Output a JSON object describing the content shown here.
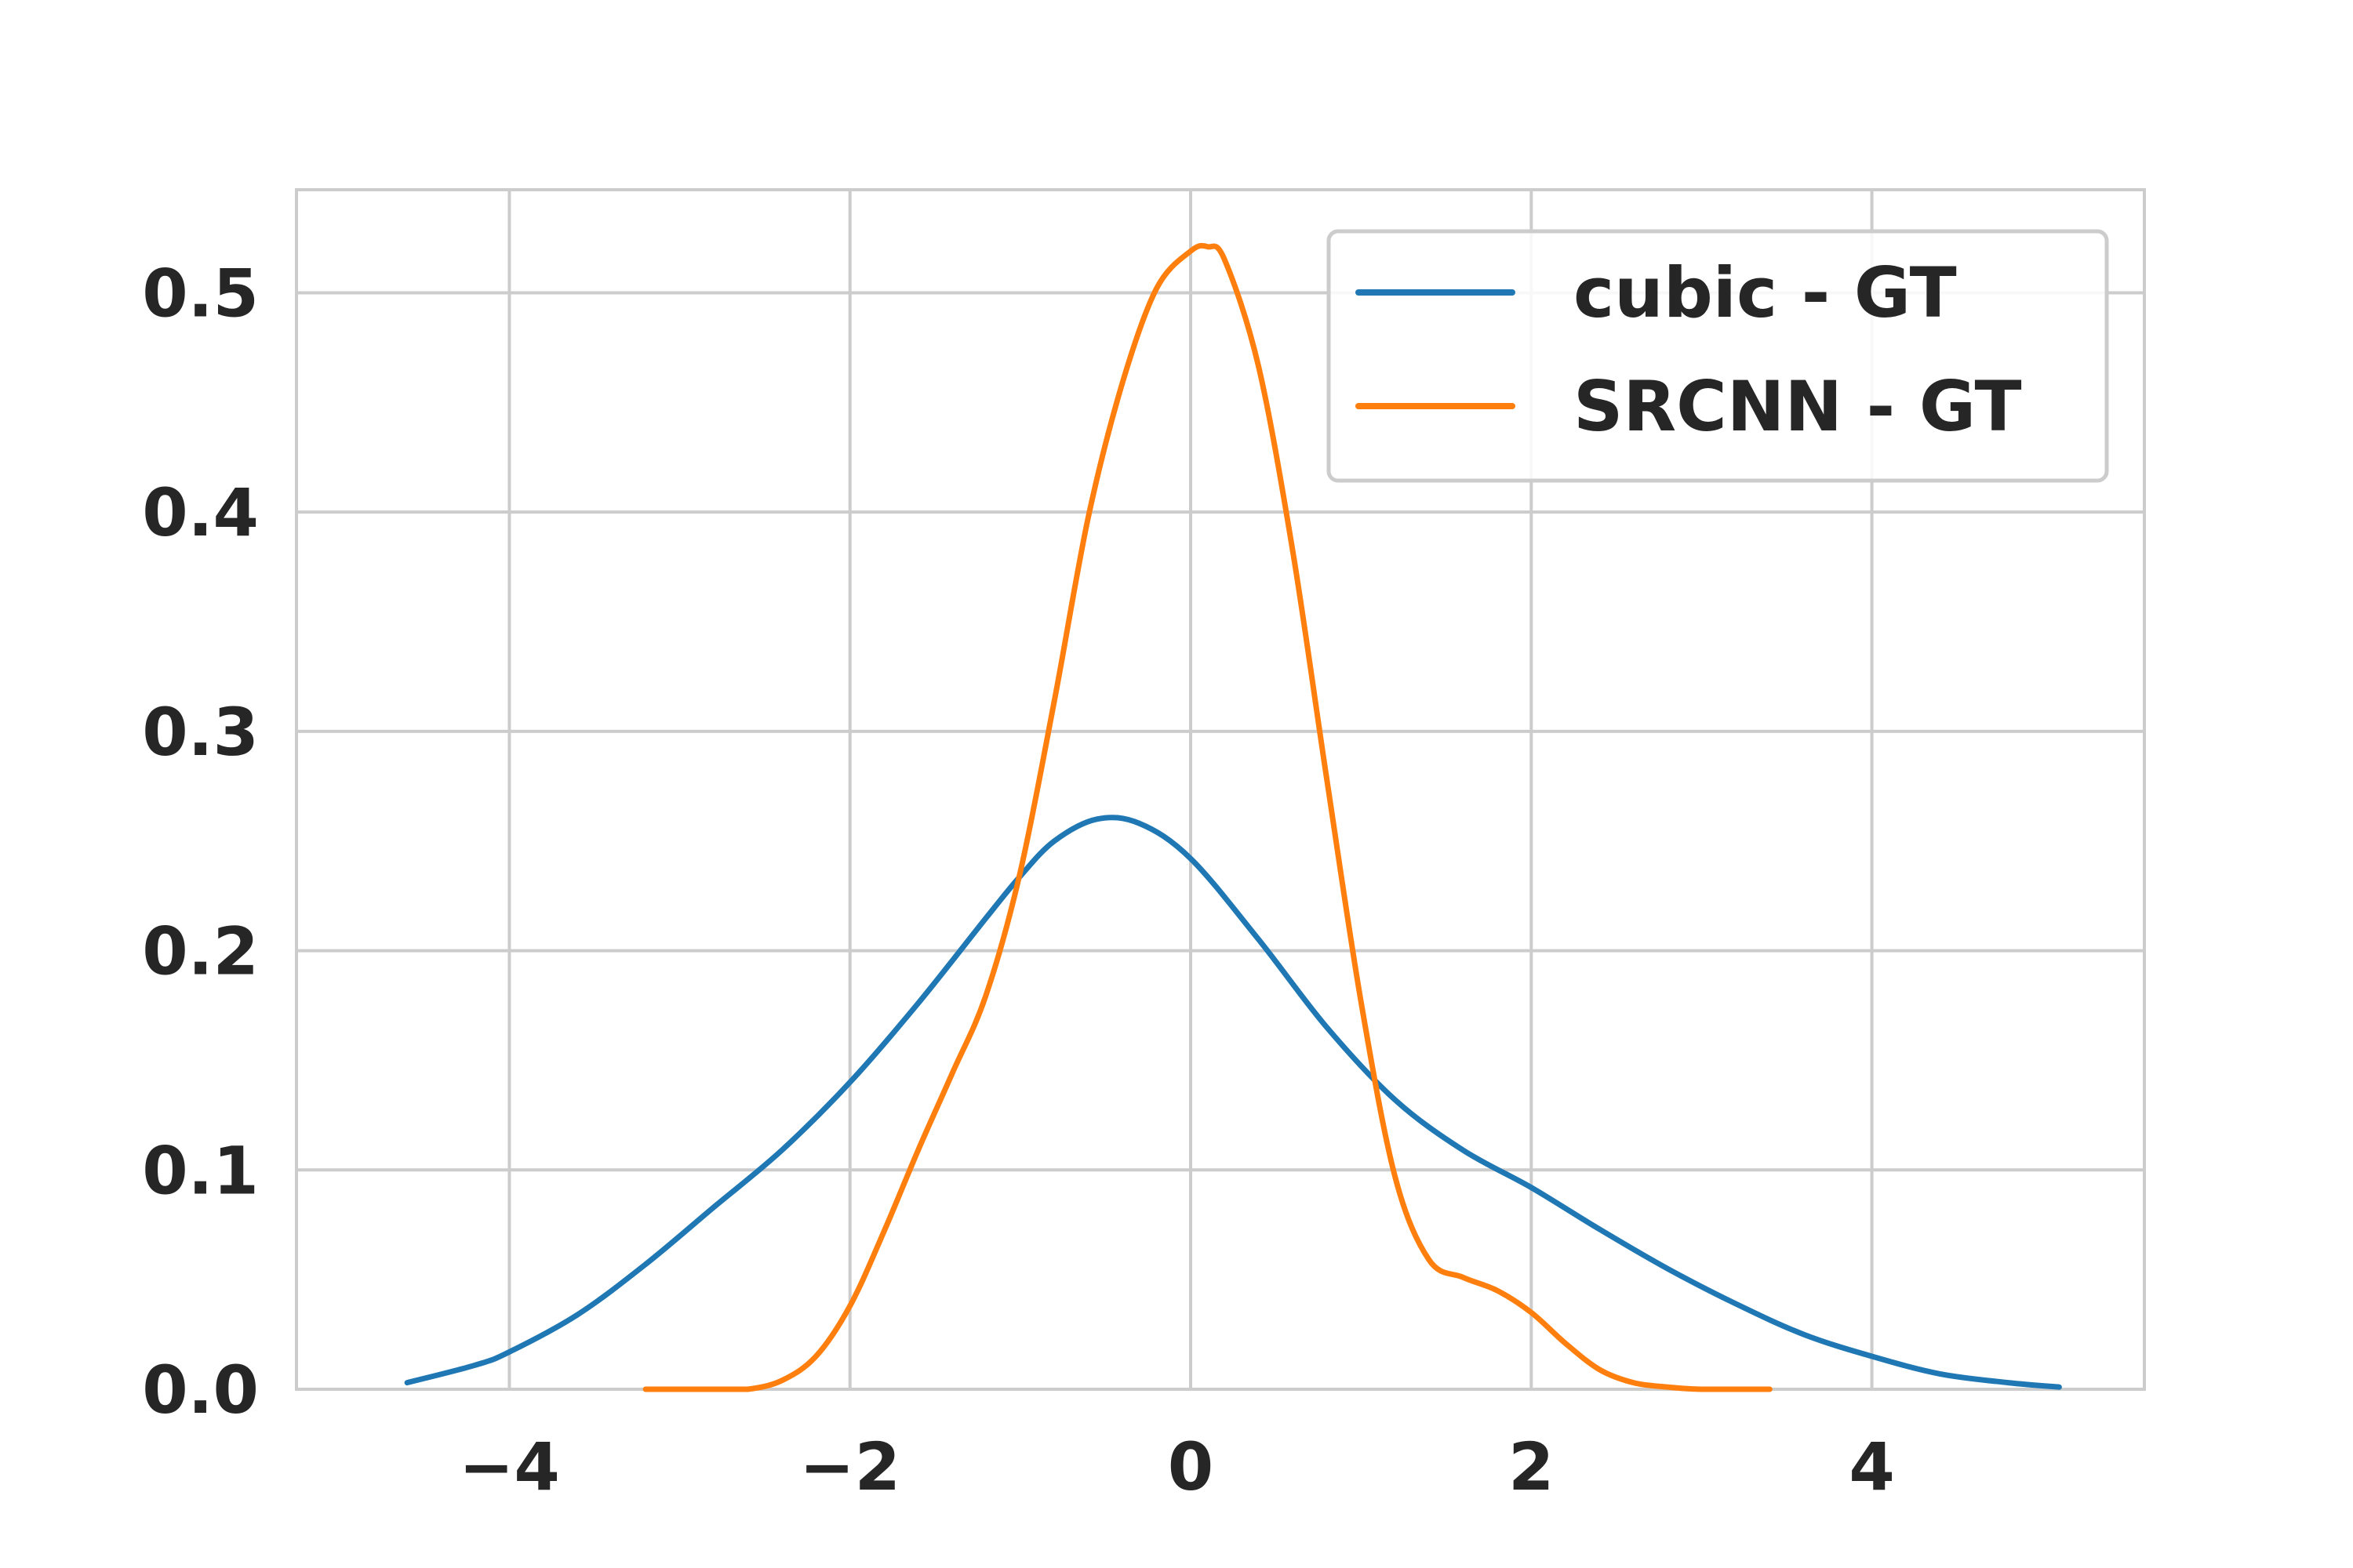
{
  "chart_data": {
    "type": "line",
    "title": "",
    "xlabel": "",
    "ylabel": "",
    "xlim": [
      -5.25,
      5.6
    ],
    "ylim": [
      0,
      0.547
    ],
    "grid": true,
    "legend_position": "top-right",
    "x_ticks": [
      -4,
      -2,
      0,
      2,
      4
    ],
    "x_tick_labels": [
      "−4",
      "−2",
      "0",
      "2",
      "4"
    ],
    "y_ticks": [
      0.0,
      0.1,
      0.2,
      0.3,
      0.4,
      0.5
    ],
    "y_tick_labels": [
      "0.0",
      "0.1",
      "0.2",
      "0.3",
      "0.4",
      "0.5"
    ],
    "series": [
      {
        "name": "cubic - GT",
        "color": "#1f77b4",
        "x": [
          -4.6,
          -4.2,
          -4.0,
          -3.6,
          -3.2,
          -2.8,
          -2.4,
          -2.0,
          -1.6,
          -1.2,
          -1.0,
          -0.8,
          -0.55,
          -0.3,
          0.0,
          0.4,
          0.8,
          1.2,
          1.6,
          2.0,
          2.4,
          2.8,
          3.2,
          3.6,
          4.0,
          4.4,
          4.8,
          5.1
        ],
        "y": [
          0.003,
          0.011,
          0.017,
          0.034,
          0.057,
          0.083,
          0.109,
          0.14,
          0.176,
          0.215,
          0.234,
          0.25,
          0.26,
          0.258,
          0.242,
          0.205,
          0.165,
          0.132,
          0.109,
          0.092,
          0.073,
          0.055,
          0.039,
          0.025,
          0.015,
          0.007,
          0.003,
          0.001
        ]
      },
      {
        "name": "SRCNN - GT",
        "color": "#ff7f0e",
        "x": [
          -3.2,
          -2.8,
          -2.6,
          -2.4,
          -2.2,
          -2.0,
          -1.8,
          -1.6,
          -1.4,
          -1.2,
          -1.0,
          -0.8,
          -0.6,
          -0.4,
          -0.2,
          0.0,
          0.1,
          0.2,
          0.4,
          0.6,
          0.8,
          1.0,
          1.2,
          1.4,
          1.6,
          1.8,
          2.0,
          2.2,
          2.4,
          2.6,
          2.8,
          3.0,
          3.4
        ],
        "y": [
          0.0,
          0.0,
          0.0,
          0.004,
          0.015,
          0.038,
          0.072,
          0.109,
          0.144,
          0.18,
          0.236,
          0.314,
          0.398,
          0.459,
          0.502,
          0.519,
          0.521,
          0.515,
          0.466,
          0.382,
          0.278,
          0.177,
          0.097,
          0.059,
          0.051,
          0.045,
          0.035,
          0.021,
          0.009,
          0.003,
          0.001,
          0.0,
          0.0
        ]
      }
    ]
  }
}
